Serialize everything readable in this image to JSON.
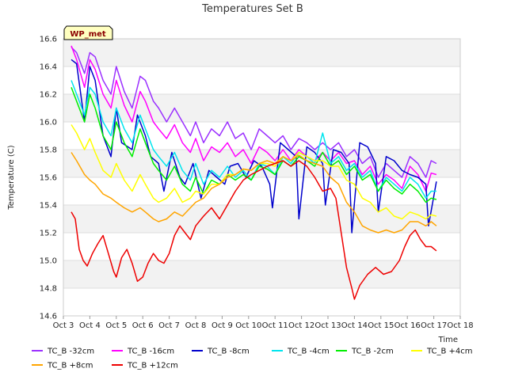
{
  "chart_data": {
    "type": "line",
    "title": "Temperatures Set B",
    "xlabel": "Time",
    "ylabel": "Temperature (C)",
    "badge": "WP_met",
    "x_ticks": [
      "Oct 3",
      "Oct 4",
      "Oct 5",
      "Oct 6",
      "Oct 7",
      "Oct 8",
      "Oct 9",
      "Oct 10",
      "Oct 11",
      "Oct 12",
      "Oct 13",
      "Oct 14",
      "Oct 15",
      "Oct 16",
      "Oct 17",
      "Oct 18"
    ],
    "y_ticks": [
      "14.6",
      "14.8",
      "15.0",
      "15.2",
      "15.4",
      "15.6",
      "15.8",
      "16.0",
      "16.2",
      "16.4",
      "16.6"
    ],
    "xlim": [
      3,
      18
    ],
    "ylim": [
      14.6,
      16.6
    ],
    "grid": true,
    "legend_position": "bottom",
    "series": [
      {
        "name": "TC_B -32cm",
        "color": "#9b30ff",
        "x": [
          3.3,
          3.5,
          3.8,
          4.0,
          4.2,
          4.5,
          4.8,
          5.0,
          5.3,
          5.6,
          5.9,
          6.1,
          6.4,
          6.6,
          6.9,
          7.2,
          7.5,
          7.8,
          8.0,
          8.3,
          8.6,
          8.9,
          9.2,
          9.5,
          9.8,
          10.1,
          10.4,
          10.7,
          11.0,
          11.3,
          11.6,
          11.9,
          12.2,
          12.5,
          12.8,
          13.1,
          13.4,
          13.7,
          14.0,
          14.3,
          14.6,
          14.9,
          15.2,
          15.5,
          15.8,
          16.1,
          16.4,
          16.7,
          16.9,
          17.1
        ],
        "y": [
          16.54,
          16.5,
          16.35,
          16.5,
          16.47,
          16.3,
          16.2,
          16.4,
          16.22,
          16.1,
          16.33,
          16.3,
          16.15,
          16.1,
          16.0,
          16.1,
          16.0,
          15.9,
          16.0,
          15.85,
          15.95,
          15.9,
          16.0,
          15.88,
          15.92,
          15.8,
          15.95,
          15.9,
          15.85,
          15.9,
          15.8,
          15.88,
          15.85,
          15.8,
          15.85,
          15.8,
          15.85,
          15.75,
          15.8,
          15.7,
          15.75,
          15.6,
          15.7,
          15.65,
          15.6,
          15.75,
          15.7,
          15.6,
          15.72,
          15.7
        ]
      },
      {
        "name": "TC_B -16cm",
        "color": "#ff00ff",
        "x": [
          3.3,
          3.5,
          3.8,
          4.0,
          4.2,
          4.5,
          4.8,
          5.0,
          5.3,
          5.6,
          5.9,
          6.1,
          6.4,
          6.6,
          6.9,
          7.2,
          7.5,
          7.8,
          8.0,
          8.3,
          8.6,
          8.9,
          9.2,
          9.5,
          9.8,
          10.1,
          10.4,
          10.7,
          11.0,
          11.3,
          11.6,
          11.9,
          12.2,
          12.5,
          12.8,
          13.1,
          13.4,
          13.7,
          14.0,
          14.3,
          14.6,
          14.9,
          15.2,
          15.5,
          15.8,
          16.1,
          16.4,
          16.7,
          16.9,
          17.1
        ],
        "y": [
          16.55,
          16.45,
          16.25,
          16.45,
          16.38,
          16.2,
          16.1,
          16.3,
          16.12,
          16.0,
          16.22,
          16.15,
          16.0,
          15.95,
          15.88,
          15.98,
          15.85,
          15.78,
          15.88,
          15.72,
          15.82,
          15.78,
          15.85,
          15.75,
          15.8,
          15.7,
          15.82,
          15.78,
          15.72,
          15.8,
          15.72,
          15.8,
          15.75,
          15.72,
          15.78,
          15.72,
          15.78,
          15.7,
          15.72,
          15.62,
          15.68,
          15.55,
          15.62,
          15.58,
          15.52,
          15.68,
          15.62,
          15.5,
          15.63,
          15.62
        ]
      },
      {
        "name": "TC_B -8cm",
        "color": "#0000cc",
        "x": [
          3.3,
          3.5,
          3.8,
          4.0,
          4.2,
          4.5,
          4.8,
          5.0,
          5.2,
          5.6,
          5.8,
          6.1,
          6.3,
          6.6,
          6.8,
          7.1,
          7.4,
          7.6,
          7.9,
          8.2,
          8.5,
          8.8,
          9.1,
          9.3,
          9.6,
          9.9,
          10.2,
          10.5,
          10.8,
          10.9,
          11.2,
          11.5,
          11.8,
          11.9,
          12.2,
          12.5,
          12.8,
          12.9,
          13.2,
          13.5,
          13.8,
          13.9,
          14.2,
          14.5,
          14.8,
          14.9,
          15.2,
          15.5,
          15.8,
          16.1,
          16.4,
          16.7,
          16.8,
          17.1
        ],
        "y": [
          16.45,
          16.42,
          16.0,
          16.4,
          16.3,
          15.9,
          15.75,
          16.1,
          15.85,
          15.8,
          16.05,
          15.9,
          15.75,
          15.7,
          15.5,
          15.78,
          15.6,
          15.55,
          15.7,
          15.45,
          15.65,
          15.6,
          15.55,
          15.68,
          15.7,
          15.6,
          15.72,
          15.68,
          15.55,
          15.38,
          15.85,
          15.8,
          15.75,
          15.3,
          15.82,
          15.78,
          15.7,
          15.4,
          15.8,
          15.78,
          15.7,
          15.2,
          15.85,
          15.82,
          15.7,
          15.35,
          15.75,
          15.72,
          15.65,
          15.62,
          15.6,
          15.55,
          15.25,
          15.57
        ]
      },
      {
        "name": "TC_B -4cm",
        "color": "#00e5ee",
        "x": [
          3.3,
          3.5,
          3.8,
          4.0,
          4.2,
          4.5,
          4.8,
          5.0,
          5.3,
          5.6,
          5.9,
          6.1,
          6.4,
          6.6,
          6.9,
          7.2,
          7.5,
          7.8,
          8.0,
          8.3,
          8.6,
          8.9,
          9.2,
          9.5,
          9.8,
          10.1,
          10.4,
          10.7,
          11.0,
          11.3,
          11.6,
          11.9,
          12.2,
          12.5,
          12.8,
          13.1,
          13.4,
          13.7,
          14.0,
          14.3,
          14.6,
          14.9,
          15.2,
          15.5,
          15.8,
          16.1,
          16.4,
          16.7,
          16.9,
          17.1
        ],
        "y": [
          16.3,
          16.2,
          16.05,
          16.25,
          16.2,
          16.0,
          15.9,
          16.1,
          15.95,
          15.85,
          16.05,
          15.95,
          15.8,
          15.75,
          15.68,
          15.78,
          15.65,
          15.58,
          15.7,
          15.55,
          15.65,
          15.6,
          15.68,
          15.6,
          15.65,
          15.58,
          15.7,
          15.68,
          15.62,
          15.75,
          15.7,
          15.78,
          15.75,
          15.7,
          15.92,
          15.7,
          15.75,
          15.65,
          15.7,
          15.6,
          15.65,
          15.5,
          15.6,
          15.55,
          15.5,
          15.6,
          15.55,
          15.45,
          15.5,
          15.5
        ]
      },
      {
        "name": "TC_B -2cm",
        "color": "#00ee00",
        "x": [
          3.3,
          3.5,
          3.8,
          4.0,
          4.2,
          4.5,
          4.8,
          5.0,
          5.3,
          5.6,
          5.9,
          6.1,
          6.4,
          6.6,
          6.9,
          7.2,
          7.5,
          7.8,
          8.0,
          8.3,
          8.6,
          8.9,
          9.2,
          9.5,
          9.8,
          10.1,
          10.4,
          10.7,
          11.0,
          11.3,
          11.6,
          11.9,
          12.2,
          12.5,
          12.8,
          13.1,
          13.4,
          13.7,
          14.0,
          14.3,
          14.6,
          14.9,
          15.2,
          15.5,
          15.8,
          16.1,
          16.4,
          16.7,
          16.9,
          17.1
        ],
        "y": [
          16.25,
          16.15,
          16.0,
          16.2,
          16.1,
          15.9,
          15.8,
          16.0,
          15.85,
          15.75,
          15.95,
          15.85,
          15.7,
          15.65,
          15.58,
          15.68,
          15.55,
          15.5,
          15.6,
          15.48,
          15.58,
          15.55,
          15.62,
          15.58,
          15.62,
          15.58,
          15.68,
          15.66,
          15.62,
          15.72,
          15.68,
          15.75,
          15.72,
          15.68,
          15.78,
          15.68,
          15.72,
          15.62,
          15.68,
          15.58,
          15.62,
          15.5,
          15.58,
          15.52,
          15.48,
          15.55,
          15.5,
          15.42,
          15.45,
          15.44
        ]
      },
      {
        "name": "TC_B +4cm",
        "color": "#ffff00",
        "x": [
          3.3,
          3.5,
          3.8,
          4.0,
          4.2,
          4.5,
          4.8,
          5.0,
          5.3,
          5.6,
          5.9,
          6.1,
          6.4,
          6.6,
          6.9,
          7.2,
          7.5,
          7.8,
          8.0,
          8.3,
          8.6,
          8.9,
          9.2,
          9.5,
          9.8,
          10.1,
          10.4,
          10.7,
          11.0,
          11.3,
          11.6,
          11.9,
          12.2,
          12.5,
          12.8,
          13.1,
          13.4,
          13.7,
          14.0,
          14.3,
          14.6,
          14.9,
          15.2,
          15.5,
          15.8,
          16.1,
          16.4,
          16.7,
          16.9,
          17.1
        ],
        "y": [
          15.98,
          15.92,
          15.8,
          15.88,
          15.78,
          15.65,
          15.6,
          15.7,
          15.58,
          15.5,
          15.62,
          15.55,
          15.45,
          15.42,
          15.45,
          15.52,
          15.42,
          15.45,
          15.5,
          15.48,
          15.55,
          15.55,
          15.62,
          15.62,
          15.66,
          15.65,
          15.7,
          15.7,
          15.68,
          15.75,
          15.72,
          15.78,
          15.75,
          15.72,
          15.72,
          15.68,
          15.68,
          15.58,
          15.55,
          15.45,
          15.42,
          15.35,
          15.38,
          15.32,
          15.3,
          15.35,
          15.33,
          15.3,
          15.33,
          15.32
        ]
      },
      {
        "name": "TC_B +8cm",
        "color": "#ffa500",
        "x": [
          3.3,
          3.5,
          3.8,
          4.0,
          4.2,
          4.5,
          4.8,
          5.0,
          5.3,
          5.6,
          5.9,
          6.1,
          6.4,
          6.6,
          6.9,
          7.2,
          7.5,
          7.8,
          8.0,
          8.3,
          8.6,
          8.9,
          9.2,
          9.5,
          9.8,
          10.1,
          10.4,
          10.7,
          11.0,
          11.3,
          11.6,
          11.9,
          12.2,
          12.5,
          12.8,
          13.1,
          13.4,
          13.7,
          14.0,
          14.3,
          14.6,
          14.9,
          15.2,
          15.5,
          15.8,
          16.1,
          16.4,
          16.7,
          16.9,
          17.1
        ],
        "y": [
          15.78,
          15.72,
          15.62,
          15.58,
          15.55,
          15.48,
          15.45,
          15.42,
          15.38,
          15.35,
          15.38,
          15.35,
          15.3,
          15.28,
          15.3,
          15.35,
          15.32,
          15.38,
          15.42,
          15.45,
          15.52,
          15.55,
          15.6,
          15.62,
          15.66,
          15.65,
          15.7,
          15.72,
          15.7,
          15.75,
          15.72,
          15.76,
          15.72,
          15.7,
          15.68,
          15.6,
          15.55,
          15.42,
          15.35,
          15.25,
          15.22,
          15.2,
          15.22,
          15.2,
          15.22,
          15.28,
          15.28,
          15.25,
          15.28,
          15.25
        ]
      },
      {
        "name": "TC_B +12cm",
        "color": "#ee0000",
        "x": [
          3.3,
          3.45,
          3.6,
          3.75,
          3.9,
          4.1,
          4.3,
          4.5,
          4.7,
          4.9,
          5.0,
          5.2,
          5.4,
          5.6,
          5.8,
          6.0,
          6.2,
          6.4,
          6.6,
          6.8,
          7.0,
          7.2,
          7.4,
          7.6,
          7.8,
          8.0,
          8.3,
          8.6,
          8.9,
          9.2,
          9.5,
          9.8,
          10.1,
          10.4,
          10.7,
          11.0,
          11.3,
          11.6,
          11.9,
          12.2,
          12.5,
          12.8,
          13.1,
          13.3,
          13.5,
          13.7,
          13.9,
          14.0,
          14.2,
          14.5,
          14.8,
          15.1,
          15.4,
          15.7,
          15.9,
          16.1,
          16.3,
          16.5,
          16.7,
          16.9,
          17.1
        ],
        "y": [
          15.35,
          15.3,
          15.08,
          15.0,
          14.96,
          15.05,
          15.12,
          15.18,
          15.05,
          14.92,
          14.88,
          15.02,
          15.08,
          14.98,
          14.85,
          14.88,
          14.98,
          15.05,
          15.0,
          14.98,
          15.05,
          15.18,
          15.25,
          15.2,
          15.15,
          15.25,
          15.32,
          15.38,
          15.3,
          15.4,
          15.5,
          15.58,
          15.62,
          15.65,
          15.68,
          15.7,
          15.72,
          15.68,
          15.72,
          15.68,
          15.6,
          15.5,
          15.52,
          15.45,
          15.2,
          14.95,
          14.8,
          14.72,
          14.82,
          14.9,
          14.95,
          14.9,
          14.92,
          15.0,
          15.1,
          15.18,
          15.22,
          15.15,
          15.1,
          15.1,
          15.07
        ]
      }
    ]
  }
}
